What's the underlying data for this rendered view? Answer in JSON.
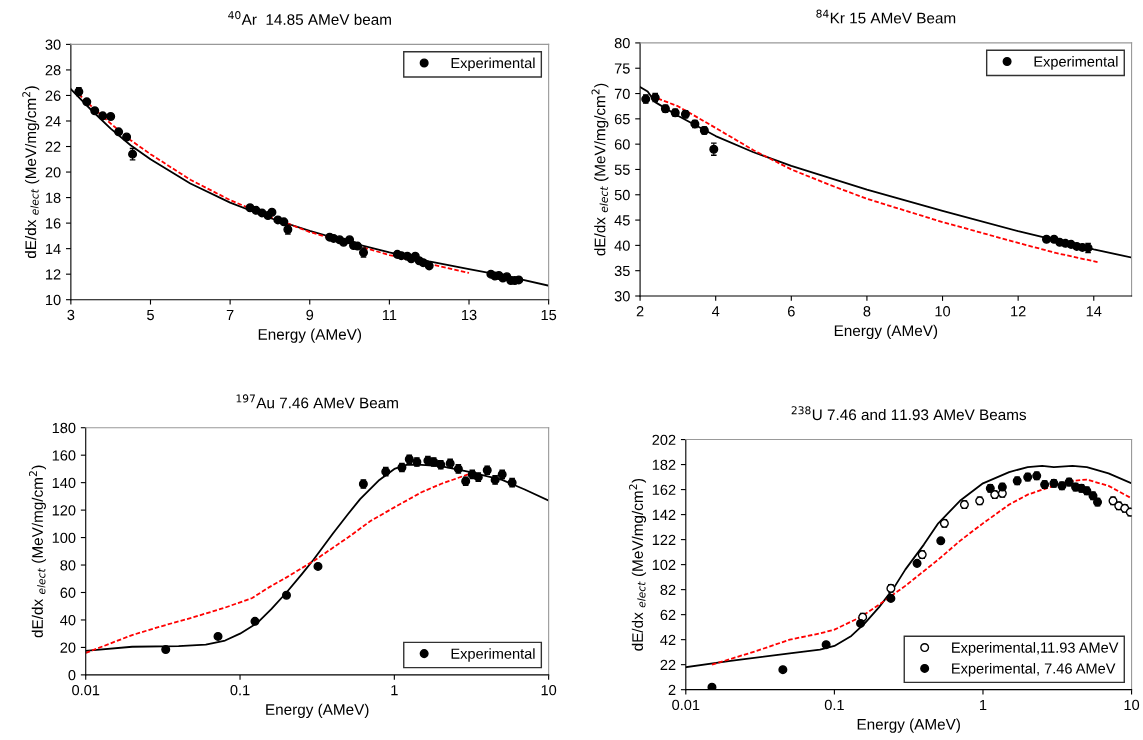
{
  "chart_data": [
    {
      "type": "scatter",
      "title": "$^{40}$Ar  14.85 AMeV beam",
      "xlabel": "Energy (AMeV)",
      "ylabel": "dE/dx $_{elect}$ (MeV/mg/cm$^{2}$)",
      "xlim": [
        3,
        15
      ],
      "xticks": [
        3,
        5,
        7,
        9,
        11,
        13,
        15
      ],
      "ylim": [
        10,
        30
      ],
      "yticks": [
        10,
        12,
        14,
        16,
        18,
        20,
        22,
        24,
        26,
        28,
        30
      ],
      "legend": "top right",
      "grid": false,
      "series": [
        {
          "name": "Experimental",
          "type": "scatter",
          "marker": "circle",
          "color": "#000000",
          "x": [
            3.2,
            3.4,
            3.6,
            3.8,
            4.0,
            4.2,
            4.4,
            4.55,
            7.5,
            7.65,
            7.8,
            7.95,
            8.05,
            8.2,
            8.35,
            8.45,
            9.5,
            9.6,
            9.75,
            9.85,
            10.0,
            10.1,
            10.2,
            10.35,
            11.2,
            11.3,
            11.45,
            11.55,
            11.65,
            11.75,
            11.85,
            12.0,
            13.55,
            13.65,
            13.75,
            13.85,
            13.95,
            14.05,
            14.15,
            14.25
          ],
          "values": [
            26.3,
            25.5,
            24.8,
            24.4,
            24.35,
            23.15,
            22.75,
            21.4,
            17.2,
            17.0,
            16.8,
            16.6,
            16.85,
            16.25,
            16.1,
            15.5,
            14.9,
            14.8,
            14.7,
            14.5,
            14.7,
            14.25,
            14.2,
            13.7,
            13.55,
            13.45,
            13.4,
            13.2,
            13.4,
            13.05,
            12.9,
            12.65,
            12.0,
            11.85,
            11.9,
            11.7,
            11.8,
            11.5,
            11.5,
            11.55
          ],
          "errors": [
            0.3,
            null,
            null,
            null,
            null,
            null,
            null,
            0.45,
            null,
            null,
            null,
            null,
            null,
            null,
            null,
            0.35,
            null,
            null,
            null,
            null,
            null,
            null,
            null,
            0.35,
            null,
            null,
            null,
            null,
            null,
            null,
            null,
            null,
            null,
            null,
            null,
            null,
            null,
            null,
            null,
            null
          ]
        },
        {
          "type": "line",
          "marker": "none",
          "line_style": "solid",
          "color": "#000000",
          "x": [
            3,
            3.5,
            4,
            4.5,
            5,
            6,
            7,
            8,
            9,
            10,
            11,
            12,
            13,
            14,
            15
          ],
          "values": [
            26.5,
            24.9,
            23.4,
            22.1,
            21.0,
            19.1,
            17.6,
            16.4,
            15.4,
            14.5,
            13.7,
            13.0,
            12.4,
            11.8,
            11.1
          ]
        },
        {
          "type": "line",
          "marker": "none",
          "line_style": "dashed",
          "color": "#ff0000",
          "x": [
            3.2,
            3.5,
            4,
            4.5,
            5,
            6,
            7,
            8,
            9,
            10,
            11,
            12,
            13
          ],
          "values": [
            26.1,
            25.2,
            23.8,
            22.5,
            21.4,
            19.4,
            17.8,
            16.5,
            15.3,
            14.4,
            13.5,
            12.8,
            12.1
          ]
        }
      ]
    },
    {
      "type": "scatter",
      "title": "$^{84}$Kr 15 AMeV Beam",
      "xlabel": "Energy (AMeV)",
      "ylabel": "dE/dx $_{elect}$ (MeV/mg/cm$^{2}$)",
      "xlim": [
        2,
        15
      ],
      "xticks": [
        2,
        4,
        6,
        8,
        10,
        12,
        14
      ],
      "ylim": [
        30,
        80
      ],
      "yticks": [
        30,
        35,
        40,
        45,
        50,
        55,
        60,
        65,
        70,
        75,
        80
      ],
      "legend": "top right",
      "grid": false,
      "series": [
        {
          "name": "Experimental",
          "type": "scatter",
          "marker": "circle",
          "color": "#000000",
          "x": [
            2.15,
            2.4,
            2.67,
            2.93,
            3.2,
            3.45,
            3.7,
            3.95,
            12.75,
            12.95,
            13.1,
            13.25,
            13.4,
            13.55,
            13.7,
            13.85
          ],
          "values": [
            68.9,
            69.2,
            67.0,
            66.2,
            65.9,
            64.0,
            62.7,
            59.0,
            41.2,
            41.2,
            40.6,
            40.4,
            40.2,
            39.8,
            39.6,
            39.5
          ],
          "errors": [
            0.8,
            0.8,
            0.7,
            0.7,
            0.7,
            0.7,
            0.7,
            1.2,
            0.5,
            0.5,
            0.5,
            0.5,
            0.5,
            0.5,
            0.5,
            0.9
          ]
        },
        {
          "type": "line",
          "marker": "none",
          "line_style": "solid",
          "color": "#000000",
          "x": [
            2,
            2.2,
            2.4,
            3,
            4,
            5,
            6,
            8,
            10,
            12,
            14,
            15
          ],
          "values": [
            71.3,
            70.4,
            68.3,
            65.6,
            61.6,
            58.4,
            55.7,
            51.0,
            46.8,
            42.8,
            39.2,
            37.6
          ]
        },
        {
          "type": "line",
          "marker": "none",
          "line_style": "dashed",
          "color": "#ff0000",
          "x": [
            2.3,
            3,
            4,
            5,
            6,
            7,
            8,
            10,
            12,
            13,
            14.1
          ],
          "values": [
            69.5,
            67.5,
            63.2,
            58.8,
            55.0,
            52.0,
            49.2,
            44.6,
            40.5,
            38.5,
            36.7
          ]
        }
      ]
    },
    {
      "type": "scatter",
      "title": "$^{197}$Au 7.46 AMeV Beam",
      "xlabel": "Energy (AMeV)",
      "ylabel": "dE/dx $_{elect}$ (MeV/mg/cm$^{2}$)",
      "log": "x",
      "xlim": [
        0.01,
        10
      ],
      "xticks": [
        {
          "value": 0.01,
          "label": "0.01"
        },
        {
          "value": 0.1,
          "label": "0.1"
        },
        {
          "value": 1,
          "label": "1"
        },
        {
          "value": 10,
          "label": "10"
        }
      ],
      "ylim": [
        0,
        180
      ],
      "yticks": [
        0,
        20,
        40,
        60,
        80,
        100,
        120,
        140,
        160,
        180
      ],
      "legend": "lower right",
      "grid": false,
      "series": [
        {
          "name": "Experimental",
          "type": "scatter",
          "marker": "circle",
          "color": "#000000",
          "x": [
            0.033,
            0.072,
            0.125,
            0.2,
            0.32,
            0.63,
            0.88,
            1.12,
            1.25,
            1.4,
            1.65,
            1.8,
            2.0,
            2.3,
            2.6,
            2.9,
            3.2,
            3.5,
            4.0,
            4.5,
            5.0,
            5.8
          ],
          "values": [
            18.5,
            28,
            39,
            58,
            79,
            139,
            148,
            151,
            157,
            155,
            156,
            155,
            153,
            154,
            150,
            141,
            146,
            144,
            149,
            142,
            146,
            140
          ],
          "errors": [
            null,
            null,
            null,
            null,
            null,
            3,
            3,
            3,
            3,
            3,
            3,
            3,
            3,
            3,
            3,
            3,
            3,
            3,
            3,
            3,
            3,
            3
          ]
        },
        {
          "type": "line",
          "marker": "none",
          "line_style": "solid",
          "color": "#000000",
          "x": [
            0.01,
            0.02,
            0.04,
            0.06,
            0.08,
            0.1,
            0.13,
            0.16,
            0.2,
            0.25,
            0.3,
            0.4,
            0.5,
            0.6,
            0.8,
            1.0,
            1.2,
            1.5,
            2,
            3,
            5,
            7,
            10
          ],
          "values": [
            17.5,
            20.5,
            21,
            22,
            25,
            30,
            38,
            48,
            60,
            73,
            84,
            103,
            117,
            128,
            142,
            150,
            153,
            153,
            152,
            148,
            142,
            135,
            127
          ]
        },
        {
          "type": "line",
          "marker": "none",
          "line_style": "dashed",
          "color": "#ff0000",
          "x": [
            0.01,
            0.02,
            0.03,
            0.05,
            0.08,
            0.12,
            0.15,
            0.2,
            0.3,
            0.5,
            0.7,
            1.0,
            1.5,
            2,
            3
          ],
          "values": [
            16,
            29,
            35,
            42,
            49,
            56,
            63,
            71,
            83,
            100,
            112,
            122,
            133,
            139,
            146
          ]
        }
      ]
    },
    {
      "type": "scatter",
      "title": "$^{238}$U 7.46 and 11.93 AMeV Beams",
      "xlabel": "Energy (AMeV)",
      "ylabel": "dE/dx $_{elect}$ (MeV/mg/cm$^{2}$)",
      "log": "x",
      "xlim": [
        0.01,
        10
      ],
      "xticks": [
        {
          "value": 0.01,
          "label": "0.01"
        },
        {
          "value": 0.1,
          "label": "0.1"
        },
        {
          "value": 1,
          "label": "1"
        },
        {
          "value": 10,
          "label": "10"
        }
      ],
      "ylim": [
        2,
        202
      ],
      "yticks": [
        2,
        22,
        42,
        62,
        82,
        102,
        122,
        142,
        162,
        182,
        202
      ],
      "legend": "lower right",
      "grid": false,
      "series": [
        {
          "name": "Experimental,11.93 AMeV",
          "type": "scatter",
          "marker": "circle",
          "color": "#ffffff",
          "x": [
            0.155,
            0.24,
            0.39,
            0.55,
            0.75,
            0.95,
            1.2,
            1.35,
            7.5,
            8.2,
            9.0,
            9.8
          ],
          "values": [
            60,
            83,
            110,
            135,
            150,
            153,
            158,
            159,
            153,
            149,
            147,
            144
          ],
          "errors": [
            3,
            3,
            3,
            3,
            3,
            3,
            3,
            3,
            3,
            3,
            3,
            3
          ]
        },
        {
          "name": "Experimental, 7.46 AMeV",
          "type": "scatter",
          "marker": "circle",
          "color": "#000000",
          "x": [
            0.015,
            0.045,
            0.088,
            0.15,
            0.24,
            0.36,
            0.52,
            1.12,
            1.35,
            1.7,
            2.0,
            2.3,
            2.6,
            3.0,
            3.4,
            3.8,
            4.2,
            4.6,
            5.0,
            5.5,
            5.9
          ],
          "values": [
            4,
            18,
            38,
            55,
            75,
            103,
            121,
            163,
            164,
            169,
            172,
            173,
            166,
            167,
            165,
            168,
            164,
            163,
            161,
            157,
            152
          ],
          "errors": [
            null,
            null,
            null,
            null,
            null,
            null,
            null,
            3,
            3,
            3,
            3,
            3,
            3,
            3,
            3,
            3,
            3,
            3,
            3,
            3,
            3
          ]
        },
        {
          "type": "line",
          "marker": "none",
          "line_style": "solid",
          "color": "#000000",
          "x": [
            0.01,
            0.02,
            0.05,
            0.08,
            0.1,
            0.13,
            0.16,
            0.2,
            0.25,
            0.3,
            0.4,
            0.5,
            0.7,
            1.0,
            1.5,
            2,
            2.5,
            3,
            4,
            5,
            7,
            10
          ],
          "values": [
            20,
            25,
            31,
            34,
            37,
            45,
            55,
            68,
            83,
            98,
            118,
            135,
            153,
            167,
            176,
            180,
            181,
            180,
            181,
            180,
            175,
            167
          ]
        },
        {
          "type": "line",
          "marker": "none",
          "line_style": "dashed",
          "color": "#ff0000",
          "x": [
            0.015,
            0.03,
            0.05,
            0.08,
            0.1,
            0.15,
            0.2,
            0.3,
            0.5,
            0.7,
            1.0,
            1.5,
            2,
            3,
            4,
            5,
            7,
            10
          ],
          "values": [
            22,
            33,
            42,
            47,
            50,
            60,
            70,
            85,
            106,
            121,
            135,
            150,
            158,
            165,
            169,
            170,
            165,
            155
          ]
        }
      ]
    }
  ]
}
